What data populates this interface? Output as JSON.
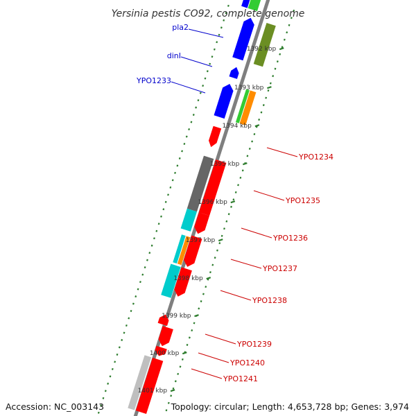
{
  "title": "Yersinia pestis CO92, complete genome",
  "footer": {
    "accession": "Accession: NC_003143",
    "topology": "Topology: circular; Length: 4,653,728 bp; Genes: 3,974"
  },
  "colors": {
    "backbone": "#7f7f7f",
    "tick": "#2e7d2e",
    "red": "#ff0000",
    "blue": "#0000ff",
    "olive": "#6b8e23",
    "gray": "#666666",
    "lightgray": "#bfbfbf",
    "cyan": "#00cccc",
    "orange": "#ff8c00",
    "green": "#33cc33"
  },
  "ticks": [
    {
      "label": "1392 kbp"
    },
    {
      "label": "1393 kbp"
    },
    {
      "label": "1394 kbp"
    },
    {
      "label": "1395 kbp"
    },
    {
      "label": "1396 kbp"
    },
    {
      "label": "1397 kbp"
    },
    {
      "label": "1398 kbp"
    },
    {
      "label": "1399 kbp"
    },
    {
      "label": "1400 kbp"
    },
    {
      "label": "1401 kbp"
    }
  ],
  "left_labels": [
    {
      "text": "pla2",
      "color": "#0000cc"
    },
    {
      "text": "dinI",
      "color": "#0000cc"
    },
    {
      "text": "YPO1233",
      "color": "#0000cc"
    }
  ],
  "right_labels": [
    {
      "text": "YPO1234",
      "color": "#cc0000"
    },
    {
      "text": "YPO1235",
      "color": "#cc0000"
    },
    {
      "text": "YPO1236",
      "color": "#cc0000"
    },
    {
      "text": "YPO1237",
      "color": "#cc0000"
    },
    {
      "text": "YPO1238",
      "color": "#cc0000"
    },
    {
      "text": "YPO1239",
      "color": "#cc0000"
    },
    {
      "text": "YPO1240",
      "color": "#cc0000"
    },
    {
      "text": "YPO1241",
      "color": "#cc0000"
    }
  ]
}
